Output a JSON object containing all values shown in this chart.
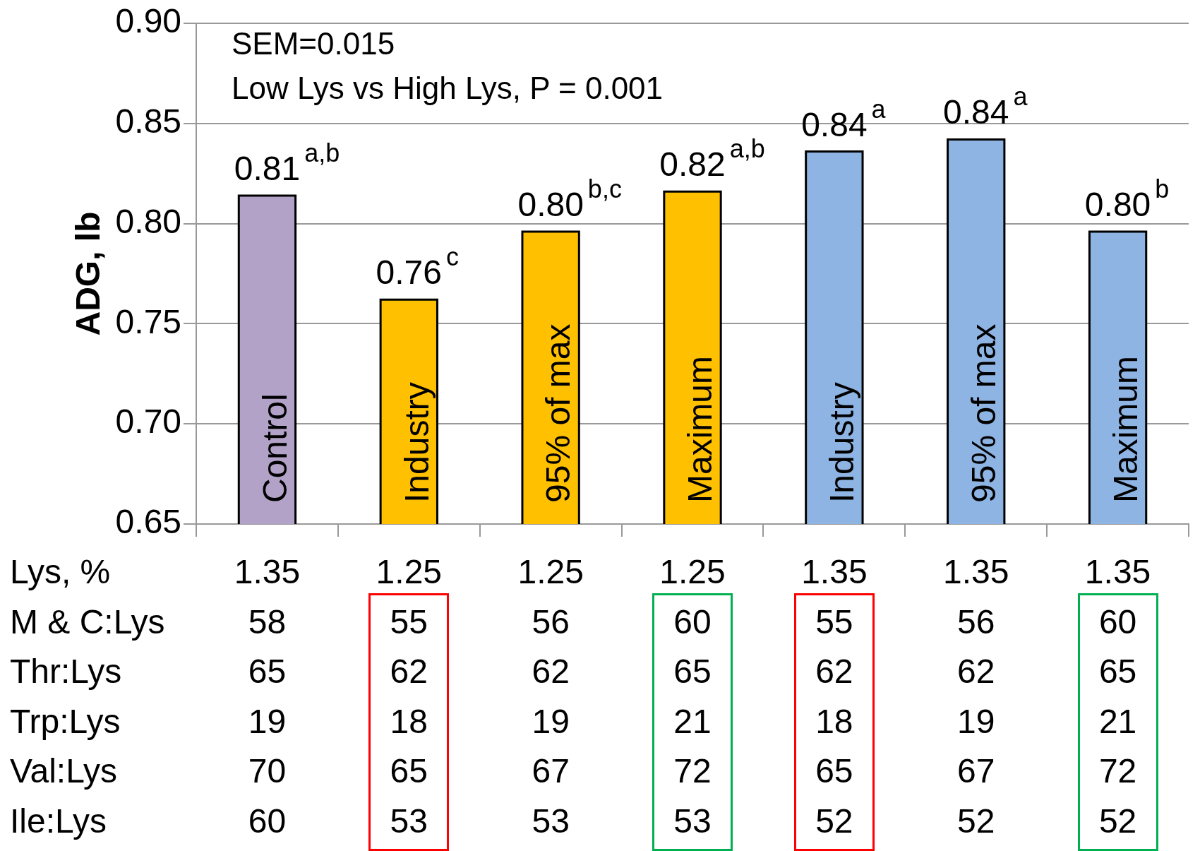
{
  "chart_data": {
    "type": "bar",
    "ylabel": "ADG, lb",
    "categories": [
      "Control",
      "Industry",
      "95% of max",
      "Maximum",
      "Industry",
      "95% of max",
      "Maximum"
    ],
    "values": [
      0.814,
      0.762,
      0.796,
      0.816,
      0.836,
      0.842,
      0.796
    ],
    "colors": [
      "#b3a2c7",
      "#ffc000",
      "#ffc000",
      "#ffc000",
      "#8eb4e3",
      "#8eb4e3",
      "#8eb4e3"
    ],
    "value_labels": [
      "0.81$^{a,b}$",
      "0.76$^{c}$",
      "0.80$^{b,c}$",
      "0.82$^{a,b}$",
      "0.84$^{a}$",
      "0.84$^{a}$",
      "0.80$^{b}$"
    ],
    "ylim": [
      0.65,
      0.9
    ],
    "yticks": [
      0.65,
      {
        "value": 0.7,
        "label": "0.70"
      },
      0.75,
      {
        "value": 0.8,
        "label": "0.80"
      },
      0.85,
      {
        "value": 0.9,
        "label": "0.90"
      }
    ],
    "grid": "y",
    "annotations": [
      "SEM=0.015",
      "Low Lys vs High Lys, P = 0.001",
      "Lys, %",
      "1.35",
      "1.25",
      "1.25",
      "1.25",
      "1.35",
      "1.35",
      "1.35",
      "M & C:Lys",
      "58",
      "55",
      "56",
      "60",
      "55",
      "56",
      "60",
      "Thr:Lys",
      "65",
      "62",
      "62",
      "65",
      "62",
      "62",
      "65",
      "Trp:Lys",
      "19",
      "18",
      "19",
      "21",
      "18",
      "19",
      "21",
      "Val:Lys",
      "70",
      "65",
      "67",
      "72",
      "65",
      "67",
      "72",
      "Ile:Lys",
      "60",
      "53",
      "53",
      "53",
      "52",
      "52",
      "52"
    ]
  }
}
